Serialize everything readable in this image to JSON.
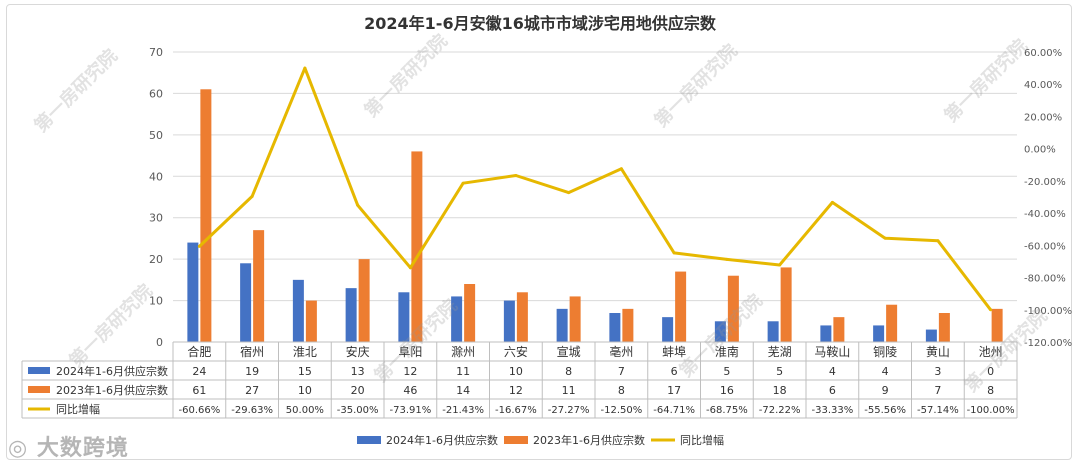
{
  "chart_data": {
    "type": "bar",
    "title": "2024年1-6月安徽16城市市域涉宅用地供应宗数",
    "categories": [
      "合肥",
      "宿州",
      "淮北",
      "安庆",
      "阜阳",
      "滁州",
      "六安",
      "宣城",
      "亳州",
      "蚌埠",
      "淮南",
      "芜湖",
      "马鞍山",
      "铜陵",
      "黄山",
      "池州"
    ],
    "series": [
      {
        "name": "2024年1-6月供应宗数",
        "type": "bar",
        "axis": "left",
        "color": "#4472c4",
        "values": [
          24,
          19,
          15,
          13,
          12,
          11,
          10,
          8,
          7,
          6,
          5,
          5,
          4,
          4,
          3,
          0
        ]
      },
      {
        "name": "2023年1-6月供应宗数",
        "type": "bar",
        "axis": "left",
        "color": "#ed7d31",
        "values": [
          61,
          27,
          10,
          20,
          46,
          14,
          12,
          11,
          8,
          17,
          16,
          18,
          6,
          9,
          7,
          8
        ]
      },
      {
        "name": "同比增幅",
        "type": "line",
        "axis": "right",
        "color": "#e6b800",
        "values": [
          -60.66,
          -29.63,
          50.0,
          -35.0,
          -73.91,
          -21.43,
          -16.67,
          -27.27,
          -12.5,
          -64.71,
          -68.75,
          -72.22,
          -33.33,
          -55.56,
          -57.14,
          -100.0
        ]
      }
    ],
    "table_values": [
      [
        "24",
        "19",
        "15",
        "13",
        "12",
        "11",
        "10",
        "8",
        "7",
        "6",
        "5",
        "5",
        "4",
        "4",
        "3",
        "0"
      ],
      [
        "61",
        "27",
        "10",
        "20",
        "46",
        "14",
        "12",
        "11",
        "8",
        "17",
        "16",
        "18",
        "6",
        "9",
        "7",
        "8"
      ],
      [
        "-60.66%",
        "-29.63%",
        "50.00%",
        "-35.00%",
        "-73.91%",
        "-21.43%",
        "-16.67%",
        "-27.27%",
        "-12.50%",
        "-64.71%",
        "-68.75%",
        "-72.22%",
        "-33.33%",
        "-55.56%",
        "-57.14%",
        "-100.00%"
      ]
    ],
    "left_axis": {
      "ylim": [
        0,
        70
      ],
      "ticks": [
        "0",
        "10",
        "20",
        "30",
        "40",
        "50",
        "60",
        "70"
      ]
    },
    "right_axis": {
      "ylim": [
        -120,
        60
      ],
      "ticks": [
        "-120.00%",
        "-100.00%",
        "-80.00%",
        "-60.00%",
        "-40.00%",
        "-20.00%",
        "0.00%",
        "20.00%",
        "40.00%",
        "60.00%"
      ]
    },
    "grid": true,
    "legend_position": "bottom"
  },
  "watermark_text": "第一房研究院",
  "brand_text": "大数跨境"
}
